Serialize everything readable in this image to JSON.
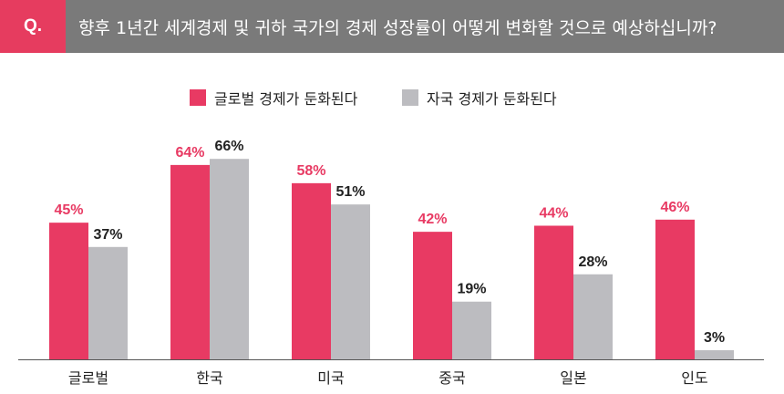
{
  "header": {
    "badge": "Q.",
    "question": "향후 1년간 세계경제 및 귀하 국가의 경제 성장률이 어떻게 변화할 것으로 예상하십니까?"
  },
  "colors": {
    "header_bg": "#7a7a7a",
    "accent": "#e63c5f",
    "global": "#e83a63",
    "domestic": "#bcbcc0"
  },
  "chart_data": {
    "type": "bar",
    "categories": [
      "글로벌",
      "한국",
      "미국",
      "중국",
      "일본",
      "인도"
    ],
    "series": [
      {
        "name": "글로벌 경제가 둔화된다",
        "values": [
          45,
          64,
          58,
          42,
          44,
          46
        ],
        "labels": [
          "45%",
          "64%",
          "58%",
          "42%",
          "44%",
          "46%"
        ]
      },
      {
        "name": "자국 경제가 둔화된다",
        "values": [
          37,
          66,
          51,
          19,
          28,
          3
        ],
        "labels": [
          "37%",
          "66%",
          "51%",
          "19%",
          "28%",
          "3%"
        ]
      }
    ],
    "ylim": [
      0,
      100
    ],
    "grid": false,
    "legend_position": "top-center"
  }
}
